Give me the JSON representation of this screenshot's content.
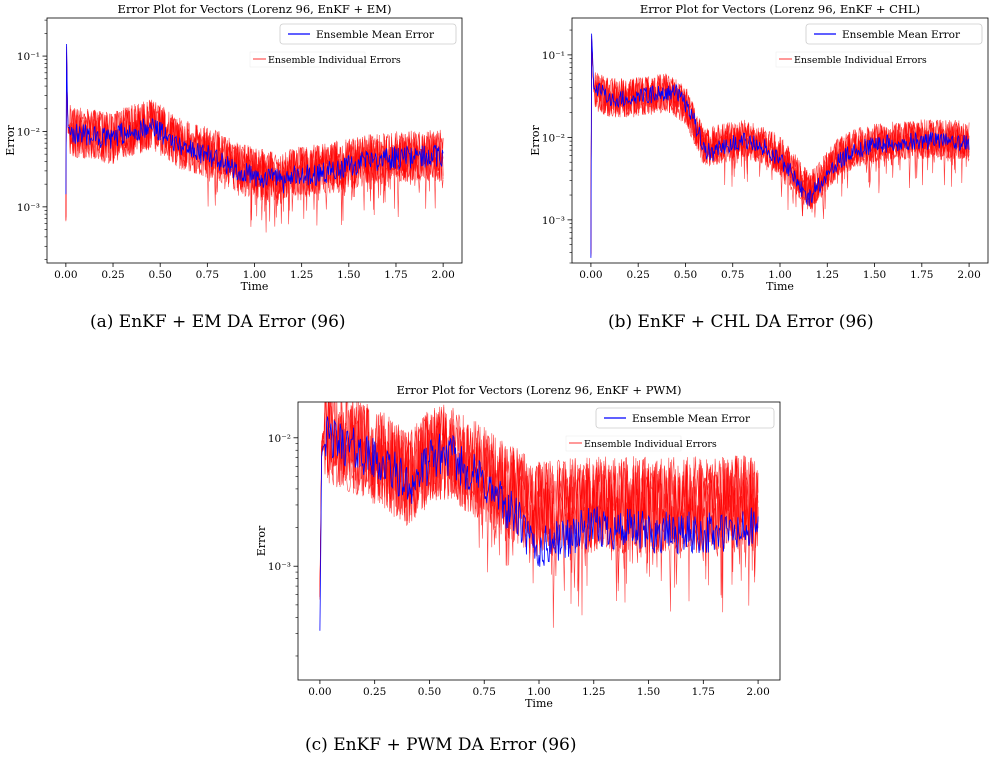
{
  "captions": [
    "(a) EnKF + EM DA Error (96)",
    "(b) EnKF + CHL DA Error (96)",
    "(c) EnKF + PWM DA Error (96)"
  ],
  "chart_data": [
    {
      "type": "line",
      "title": "Error Plot for Vectors (Lorenz 96, EnKF + EM)",
      "xlabel": "Time",
      "ylabel": "Error",
      "yscale": "log",
      "xlim": [
        -0.1,
        2.1
      ],
      "ylim": [
        0.00018,
        0.32
      ],
      "xticks": [
        "0.00",
        "0.25",
        "0.50",
        "0.75",
        "1.00",
        "1.25",
        "1.50",
        "1.75",
        "2.00"
      ],
      "yticks": [
        {
          "value": 0.001,
          "label": "10⁻³"
        },
        {
          "value": 0.01,
          "label": "10⁻²"
        },
        {
          "value": 0.1,
          "label": "10⁻¹"
        }
      ],
      "legend_placement": "top-right",
      "series": [
        {
          "name": "Ensemble Mean Error",
          "color": "#0000ff",
          "points": [
            [
              0.0,
              0.0015
            ],
            [
              0.003,
              0.2
            ],
            [
              0.01,
              0.012
            ],
            [
              0.05,
              0.009
            ],
            [
              0.1,
              0.0095
            ],
            [
              0.15,
              0.0085
            ],
            [
              0.2,
              0.0082
            ],
            [
              0.25,
              0.0075
            ],
            [
              0.3,
              0.0095
            ],
            [
              0.35,
              0.0092
            ],
            [
              0.4,
              0.011
            ],
            [
              0.45,
              0.0122
            ],
            [
              0.5,
              0.01
            ],
            [
              0.55,
              0.0085
            ],
            [
              0.6,
              0.0068
            ],
            [
              0.7,
              0.0055
            ],
            [
              0.8,
              0.0045
            ],
            [
              0.9,
              0.0032
            ],
            [
              1.0,
              0.0025
            ],
            [
              1.1,
              0.0024
            ],
            [
              1.15,
              0.0021
            ],
            [
              1.2,
              0.0025
            ],
            [
              1.3,
              0.0026
            ],
            [
              1.4,
              0.003
            ],
            [
              1.5,
              0.0035
            ],
            [
              1.6,
              0.004
            ],
            [
              1.75,
              0.0045
            ],
            [
              1.9,
              0.0046
            ],
            [
              2.0,
              0.0048
            ]
          ]
        },
        {
          "name": "Ensemble Individual Errors",
          "color": "#ff0000",
          "points": [
            [
              0.0,
              0.0007
            ],
            [
              0.003,
              0.16
            ],
            [
              0.01,
              0.011
            ],
            [
              0.05,
              0.0095
            ],
            [
              0.1,
              0.0095
            ],
            [
              0.2,
              0.0085
            ],
            [
              0.25,
              0.008
            ],
            [
              0.3,
              0.0095
            ],
            [
              0.4,
              0.0112
            ],
            [
              0.45,
              0.0122
            ],
            [
              0.5,
              0.0105
            ],
            [
              0.6,
              0.007
            ],
            [
              0.7,
              0.0058
            ],
            [
              0.8,
              0.0048
            ],
            [
              0.9,
              0.0034
            ],
            [
              1.0,
              0.0028
            ],
            [
              1.15,
              0.0023
            ],
            [
              1.2,
              0.0028
            ],
            [
              1.3,
              0.003
            ],
            [
              1.4,
              0.0033
            ],
            [
              1.5,
              0.0037
            ],
            [
              1.6,
              0.0042
            ],
            [
              1.75,
              0.0046
            ],
            [
              1.9,
              0.0048
            ],
            [
              2.0,
              0.0048
            ]
          ]
        }
      ]
    },
    {
      "type": "line",
      "title": "Error Plot for Vectors (Lorenz 96, EnKF + CHL)",
      "xlabel": "Time",
      "ylabel": "Error",
      "yscale": "log",
      "xlim": [
        -0.1,
        2.1
      ],
      "ylim": [
        0.0003,
        0.28
      ],
      "xticks": [
        "0.00",
        "0.25",
        "0.50",
        "0.75",
        "1.00",
        "1.25",
        "1.50",
        "1.75",
        "2.00"
      ],
      "yticks": [
        {
          "value": 0.001,
          "label": "10⁻³"
        },
        {
          "value": 0.01,
          "label": "10⁻²"
        },
        {
          "value": 0.1,
          "label": "10⁻¹"
        }
      ],
      "legend_placement": "top-right",
      "series": [
        {
          "name": "Ensemble Mean Error",
          "color": "#0000ff",
          "points": [
            [
              0.0,
              0.00035
            ],
            [
              0.003,
              0.2
            ],
            [
              0.015,
              0.04
            ],
            [
              0.05,
              0.035
            ],
            [
              0.1,
              0.03
            ],
            [
              0.15,
              0.028
            ],
            [
              0.2,
              0.03
            ],
            [
              0.3,
              0.032
            ],
            [
              0.4,
              0.036
            ],
            [
              0.45,
              0.035
            ],
            [
              0.5,
              0.025
            ],
            [
              0.55,
              0.015
            ],
            [
              0.6,
              0.007
            ],
            [
              0.65,
              0.0065
            ],
            [
              0.7,
              0.008
            ],
            [
              0.8,
              0.009
            ],
            [
              0.9,
              0.008
            ],
            [
              1.0,
              0.0055
            ],
            [
              1.08,
              0.0032
            ],
            [
              1.15,
              0.0018
            ],
            [
              1.2,
              0.0025
            ],
            [
              1.3,
              0.005
            ],
            [
              1.4,
              0.007
            ],
            [
              1.5,
              0.008
            ],
            [
              1.6,
              0.0085
            ],
            [
              1.75,
              0.009
            ],
            [
              1.9,
              0.009
            ],
            [
              2.0,
              0.0085
            ]
          ]
        },
        {
          "name": "Ensemble Individual Errors",
          "color": "#ff0000",
          "points": [
            [
              0.0,
              0.0004
            ],
            [
              0.003,
              0.17
            ],
            [
              0.015,
              0.038
            ],
            [
              0.05,
              0.034
            ],
            [
              0.1,
              0.03
            ],
            [
              0.2,
              0.03
            ],
            [
              0.3,
              0.032
            ],
            [
              0.4,
              0.035
            ],
            [
              0.5,
              0.025
            ],
            [
              0.6,
              0.0075
            ],
            [
              0.7,
              0.0085
            ],
            [
              0.8,
              0.0095
            ],
            [
              0.9,
              0.0085
            ],
            [
              1.0,
              0.006
            ],
            [
              1.08,
              0.0036
            ],
            [
              1.15,
              0.0022
            ],
            [
              1.2,
              0.0028
            ],
            [
              1.3,
              0.0055
            ],
            [
              1.4,
              0.0075
            ],
            [
              1.5,
              0.0085
            ],
            [
              1.6,
              0.009
            ],
            [
              1.75,
              0.0095
            ],
            [
              1.9,
              0.0095
            ],
            [
              2.0,
              0.009
            ]
          ]
        }
      ]
    },
    {
      "type": "line",
      "title": "Error Plot for Vectors (Lorenz 96, EnKF + PWM)",
      "xlabel": "Time",
      "ylabel": "Error",
      "yscale": "log",
      "xlim": [
        -0.1,
        2.1
      ],
      "ylim": [
        0.00013,
        0.019
      ],
      "xticks": [
        "0.00",
        "0.25",
        "0.50",
        "0.75",
        "1.00",
        "1.25",
        "1.50",
        "1.75",
        "2.00"
      ],
      "yticks": [
        {
          "value": 0.001,
          "label": "10⁻³"
        },
        {
          "value": 0.01,
          "label": "10⁻²"
        }
      ],
      "legend_placement": "top-right",
      "series": [
        {
          "name": "Ensemble Mean Error",
          "color": "#0000ff",
          "points": [
            [
              0.0,
              0.00032
            ],
            [
              0.008,
              0.008
            ],
            [
              0.03,
              0.01
            ],
            [
              0.1,
              0.009
            ],
            [
              0.2,
              0.0075
            ],
            [
              0.3,
              0.006
            ],
            [
              0.35,
              0.0052
            ],
            [
              0.4,
              0.0042
            ],
            [
              0.45,
              0.005
            ],
            [
              0.5,
              0.0065
            ],
            [
              0.55,
              0.0075
            ],
            [
              0.6,
              0.0072
            ],
            [
              0.65,
              0.006
            ],
            [
              0.7,
              0.0052
            ],
            [
              0.75,
              0.0045
            ],
            [
              0.8,
              0.0035
            ],
            [
              0.9,
              0.0024
            ],
            [
              0.95,
              0.0016
            ],
            [
              1.0,
              0.0013
            ],
            [
              1.05,
              0.0015
            ],
            [
              1.1,
              0.0016
            ],
            [
              1.2,
              0.0019
            ],
            [
              1.3,
              0.002
            ],
            [
              1.4,
              0.0019
            ],
            [
              1.5,
              0.0018
            ],
            [
              1.6,
              0.0018
            ],
            [
              1.75,
              0.0018
            ],
            [
              1.9,
              0.0018
            ],
            [
              2.0,
              0.002
            ]
          ]
        },
        {
          "name": "Ensemble Individual Errors",
          "color": "#ff0000",
          "points": [
            [
              0.0,
              0.0006
            ],
            [
              0.008,
              0.009
            ],
            [
              0.03,
              0.0105
            ],
            [
              0.1,
              0.0095
            ],
            [
              0.2,
              0.008
            ],
            [
              0.3,
              0.0065
            ],
            [
              0.4,
              0.0048
            ],
            [
              0.5,
              0.007
            ],
            [
              0.55,
              0.0078
            ],
            [
              0.6,
              0.0075
            ],
            [
              0.7,
              0.0058
            ],
            [
              0.8,
              0.0045
            ],
            [
              0.9,
              0.0035
            ],
            [
              1.0,
              0.0028
            ],
            [
              1.1,
              0.0028
            ],
            [
              1.2,
              0.003
            ],
            [
              1.3,
              0.003
            ],
            [
              1.5,
              0.003
            ],
            [
              1.75,
              0.003
            ],
            [
              2.0,
              0.0031
            ]
          ]
        }
      ]
    }
  ]
}
